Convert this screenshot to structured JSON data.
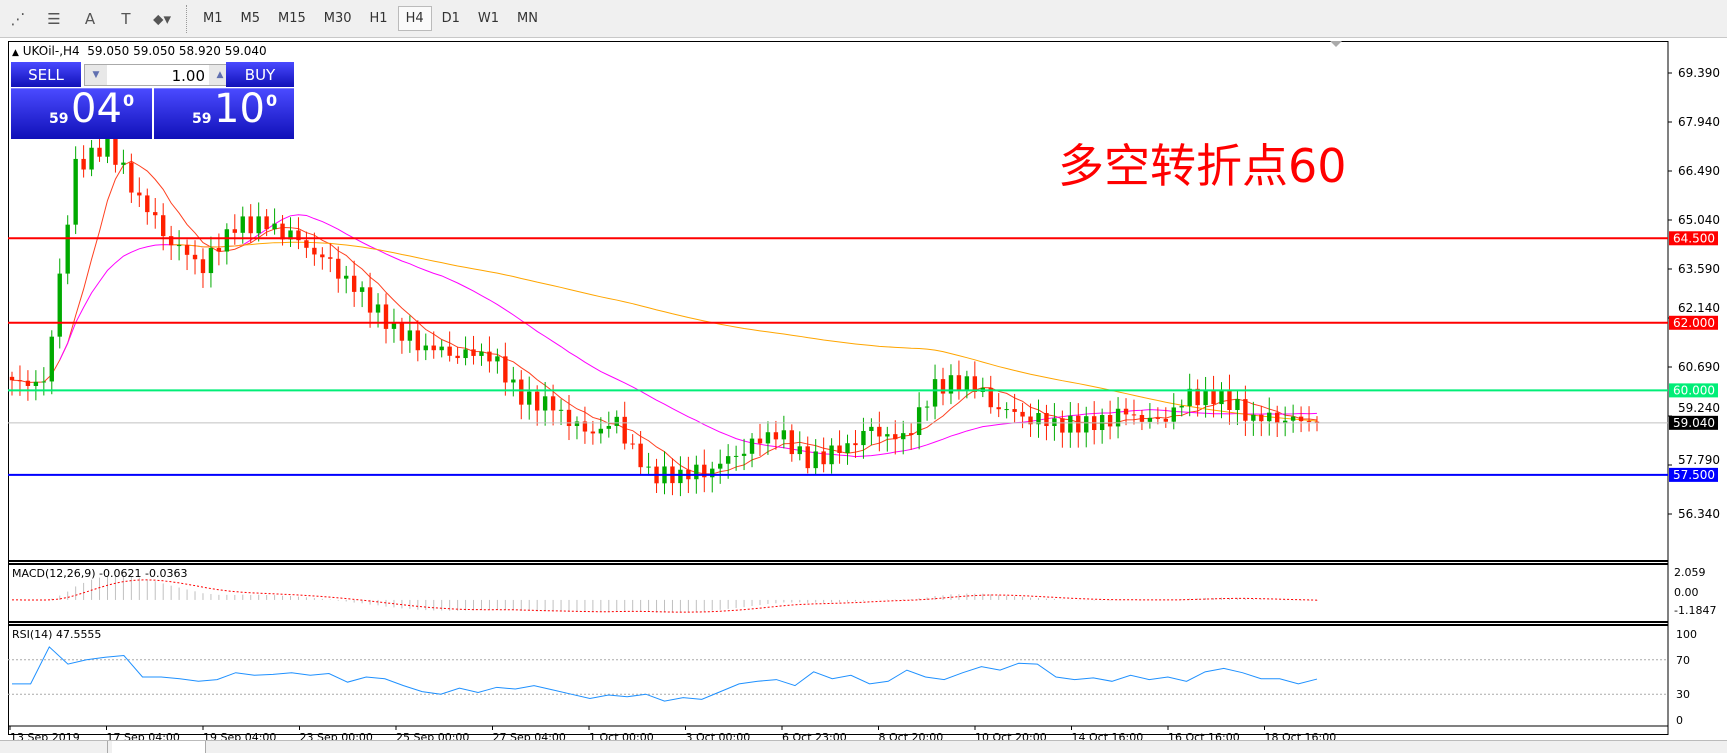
{
  "toolbar": {
    "tools": [
      {
        "icon": "fibonacci-expansion-icon",
        "glyph": "⋰"
      },
      {
        "icon": "fibonacci-fan-icon",
        "glyph": "☰"
      },
      {
        "icon": "text-icon",
        "glyph": "A"
      },
      {
        "icon": "text-label-icon",
        "glyph": "T"
      },
      {
        "icon": "arrows-dropdown-icon",
        "glyph": "⬥▾"
      }
    ],
    "timeframes": [
      "M1",
      "M5",
      "M15",
      "M30",
      "H1",
      "H4",
      "D1",
      "W1",
      "MN"
    ],
    "active_timeframe": "H4"
  },
  "chart": {
    "header": "UKOil-,H4  59.050 59.050 58.920 59.040",
    "collapse_glyph": "▲",
    "one_click": {
      "sell_label": "SELL",
      "buy_label": "BUY",
      "volume": "1.00",
      "sell_big": "59",
      "sell_main": "04",
      "sell_sup": "0",
      "buy_big": "59",
      "buy_main": "10",
      "buy_sup": "0"
    },
    "annotation": "多空转折点60",
    "annotation_color": "#ff0000"
  },
  "chart_data": {
    "type": "candlestick",
    "symbol": "UKOil-",
    "timeframe": "H4",
    "price_ticks": [
      "69.390",
      "67.940",
      "66.490",
      "65.040",
      "63.590",
      "62.140",
      "60.690",
      "59.240",
      "57.790",
      "56.340"
    ],
    "key_closes": [
      60.3,
      60.1,
      66.6,
      67.3,
      65.7,
      64.4,
      63.7,
      64.9,
      64.9,
      64.4,
      63.7,
      62.8,
      61.8,
      61.3,
      61.1,
      61.1,
      59.8,
      59.5,
      58.7,
      59.0,
      57.5,
      57.5,
      57.7,
      58.3,
      58.8,
      57.9,
      58.2,
      58.8,
      58.5,
      60.1,
      60.3,
      59.5,
      59.2,
      59.0,
      59.0,
      59.3,
      59.0,
      59.8,
      59.8,
      59.2,
      59.2,
      59.04
    ],
    "horizontal_lines": [
      {
        "price": 64.5,
        "label": "64.500",
        "color": "#ff0000"
      },
      {
        "price": 62.0,
        "label": "62.000",
        "color": "#ff0000"
      },
      {
        "price": 60.0,
        "label": "60.000",
        "color": "#00ee77"
      },
      {
        "price": 57.5,
        "label": "57.500",
        "color": "#0000ff"
      }
    ],
    "current_price": {
      "price": 59.04,
      "label": "59.040",
      "color": "#000000"
    },
    "bull_color": "#00aa00",
    "bear_color": "#ff2000",
    "ma_colors": [
      "#ff4020",
      "#ff00ff",
      "#ffa500"
    ],
    "macd": {
      "label": "MACD(12,26,9) -0.0621 -0.0363",
      "ticks": [
        "2.059",
        "0.00",
        "-1.1847"
      ],
      "range": [
        -1.1847,
        2.059
      ]
    },
    "rsi": {
      "label": "RSI(14) 47.5555",
      "ticks": [
        "100",
        "70",
        "30",
        "0"
      ],
      "levels": [
        70,
        30
      ],
      "color": "#1e90ff",
      "values": [
        42,
        42,
        85,
        65,
        70,
        73,
        75,
        50,
        50,
        48,
        45,
        47,
        55,
        52,
        53,
        55,
        52,
        54,
        44,
        50,
        48,
        40,
        33,
        30,
        37,
        32,
        38,
        36,
        40,
        35,
        30,
        25,
        29,
        27,
        30,
        22,
        26,
        24,
        33,
        42,
        45,
        47,
        40,
        56,
        48,
        52,
        42,
        45,
        58,
        50,
        47,
        55,
        62,
        58,
        66,
        65,
        50,
        47,
        49,
        45,
        52,
        47,
        50,
        45,
        56,
        60,
        55,
        48,
        48,
        42,
        47.6
      ]
    },
    "date_labels": [
      "13 Sep 2019",
      "17 Sep 04:00",
      "19 Sep 04:00",
      "23 Sep 00:00",
      "25 Sep 00:00",
      "27 Sep 04:00",
      "1 Oct 00:00",
      "3 Oct 00:00",
      "6 Oct 23:00",
      "8 Oct 20:00",
      "10 Oct 20:00",
      "14 Oct 16:00",
      "16 Oct 16:00",
      "18 Oct 16:00"
    ]
  }
}
